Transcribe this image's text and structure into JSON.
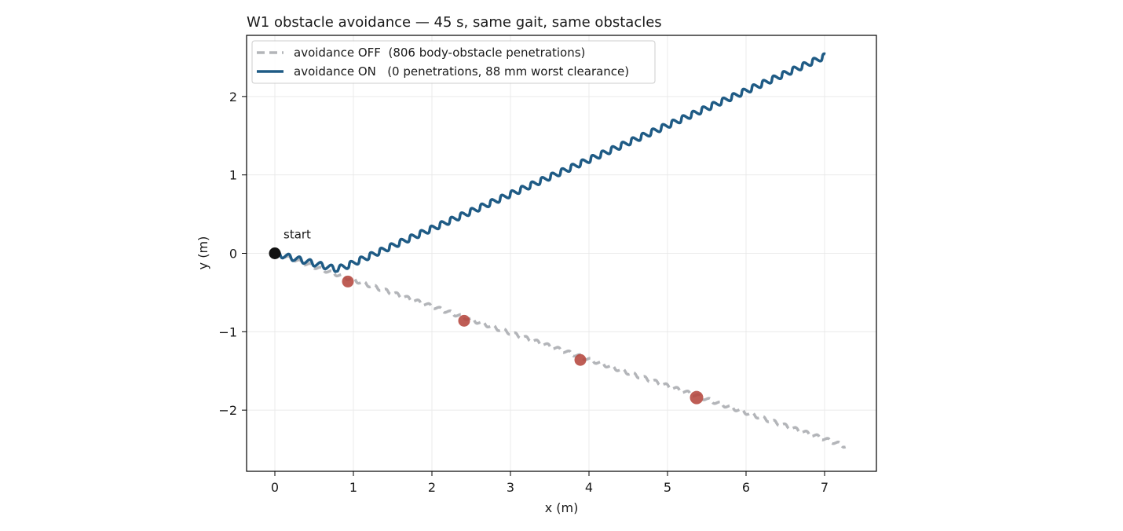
{
  "chart_data": {
    "type": "line",
    "title": "W1 obstacle avoidance — 45 s, same gait, same obstacles",
    "xlabel": "x (m)",
    "ylabel": "y (m)",
    "xlim": [
      -0.36,
      7.66
    ],
    "ylim": [
      -2.78,
      2.78
    ],
    "xticks": [
      0,
      1,
      2,
      3,
      4,
      5,
      6,
      7
    ],
    "yticks": [
      -2,
      -1,
      0,
      1,
      2
    ],
    "grid": true,
    "legend_position": "top-left",
    "series": [
      {
        "name": "avoidance OFF  (806 body-obstacle penetrations)",
        "style": "dashed",
        "color": "#b3b5b9",
        "start": [
          0.0,
          0.0
        ],
        "end": [
          7.27,
          -2.46
        ],
        "wiggle_amplitude": 0.022,
        "wiggle_period": 0.145
      },
      {
        "name": "avoidance ON   (0 penetrations, 88 mm worst clearance)",
        "style": "solid",
        "color": "#1f5b85",
        "points": [
          [
            0.0,
            0.0
          ],
          [
            0.78,
            -0.2
          ],
          [
            0.92,
            -0.16
          ],
          [
            7.02,
            2.52
          ]
        ],
        "wiggle_amplitude": 0.035,
        "wiggle_period": 0.14
      }
    ],
    "obstacles": {
      "color": "#b5473e",
      "points": [
        [
          0.93,
          -0.36
        ],
        [
          2.41,
          -0.86
        ],
        [
          3.89,
          -1.36
        ],
        [
          5.37,
          -1.84
        ]
      ]
    },
    "start_marker": {
      "x": 0,
      "y": 0,
      "label": "start",
      "color": "#111111"
    }
  }
}
